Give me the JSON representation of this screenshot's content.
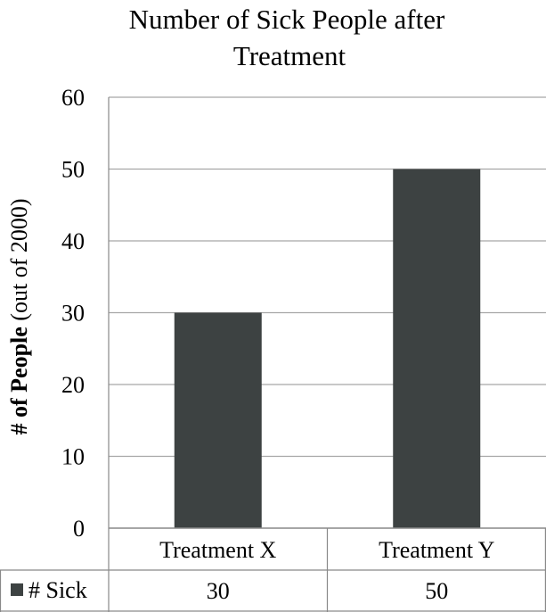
{
  "chart_data": {
    "type": "bar",
    "title_line1": "Number of Sick People after",
    "title_line2": "Treatment",
    "ylabel_bold": "# of People",
    "ylabel_rest": " (out of 2000)",
    "categories": [
      "Treatment X",
      "Treatment Y"
    ],
    "series": [
      {
        "name": "# Sick",
        "values": [
          30,
          50
        ],
        "color": "#3d4242"
      }
    ],
    "ylim": [
      0,
      60
    ],
    "yticks": [
      0,
      10,
      20,
      30,
      40,
      50,
      60
    ],
    "grid": true,
    "data_table": {
      "row_label": "# Sick",
      "values": [
        "30",
        "50"
      ]
    },
    "colors": {
      "bar": "#3d4242",
      "grid": "#a6a6a6",
      "axis": "#898989"
    }
  }
}
